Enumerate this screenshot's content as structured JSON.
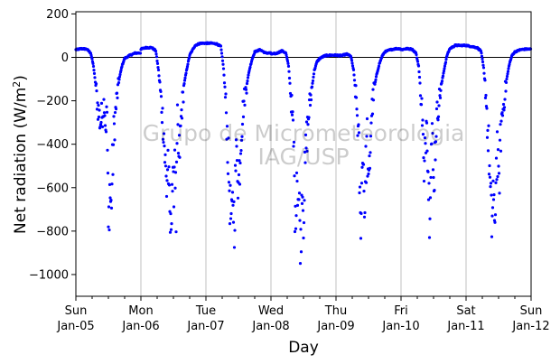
{
  "chart_data": {
    "type": "scatter",
    "xlabel": "Day",
    "ylabel_main": "Net radiation (W/m",
    "ylabel_sup": "2",
    "ylabel_close": ")",
    "watermark": [
      "Grupo de Micrometeorologia",
      "IAG/USP"
    ],
    "xlim": [
      "2020-01-05",
      "2020-01-12"
    ],
    "ylim": [
      -1100,
      210
    ],
    "yticks": [
      200,
      0,
      -200,
      -400,
      -600,
      -800,
      -1000
    ],
    "ytick_labels": [
      "200",
      "0",
      "−200",
      "−400",
      "−600",
      "−800",
      "−1000"
    ],
    "xticks": [
      {
        "date": "2020-01-05",
        "line1": "Sun",
        "line2": "Jan-05"
      },
      {
        "date": "2020-01-06",
        "line1": "Mon",
        "line2": "Jan-06"
      },
      {
        "date": "2020-01-07",
        "line1": "Tue",
        "line2": "Jan-07"
      },
      {
        "date": "2020-01-08",
        "line1": "Wed",
        "line2": "Jan-08"
      },
      {
        "date": "2020-01-09",
        "line1": "Thu",
        "line2": "Jan-09"
      },
      {
        "date": "2020-01-10",
        "line1": "Fri",
        "line2": "Jan-10"
      },
      {
        "date": "2020-01-11",
        "line1": "Sat",
        "line2": "Jan-11"
      },
      {
        "date": "2020-01-12",
        "line1": "Sun",
        "line2": "Jan-12"
      }
    ],
    "grid": "vertical",
    "zero_line": true,
    "marker_color": "#0000ff",
    "series": [
      {
        "values_by_day": [
          [
            [
              "2020-01-05 00:00",
              35
            ],
            [
              "2020-01-05 02:00",
              40
            ],
            [
              "2020-01-05 04:00",
              38
            ],
            [
              "2020-01-05 05:30",
              20
            ],
            [
              "2020-01-05 06:30",
              -40
            ],
            [
              "2020-01-05 07:30",
              -150
            ],
            [
              "2020-01-05 08:00",
              -220
            ],
            [
              "2020-01-05 08:30",
              -260
            ],
            [
              "2020-01-05 09:00",
              -300
            ],
            [
              "2020-01-05 09:30",
              -280
            ],
            [
              "2020-01-05 10:00",
              -240
            ],
            [
              "2020-01-05 10:30",
              -200
            ],
            [
              "2020-01-05 11:00",
              -320
            ],
            [
              "2020-01-05 11:30",
              -250
            ],
            [
              "2020-01-05 12:00",
              -810
            ],
            [
              "2020-01-05 12:30",
              -600
            ],
            [
              "2020-01-05 13:00",
              -700
            ],
            [
              "2020-01-05 13:30",
              -520
            ],
            [
              "2020-01-05 14:00",
              -350
            ],
            [
              "2020-01-05 15:00",
              -200
            ],
            [
              "2020-01-05 16:00",
              -100
            ],
            [
              "2020-01-05 17:00",
              -40
            ],
            [
              "2020-01-05 18:00",
              -5
            ],
            [
              "2020-01-05 20:00",
              10
            ],
            [
              "2020-01-05 22:00",
              20
            ]
          ],
          [
            [
              "2020-01-06 00:00",
              38
            ],
            [
              "2020-01-06 02:00",
              45
            ],
            [
              "2020-01-06 04:00",
              45
            ],
            [
              "2020-01-06 05:30",
              30
            ],
            [
              "2020-01-06 06:30",
              -60
            ],
            [
              "2020-01-06 07:30",
              -200
            ],
            [
              "2020-01-06 08:30",
              -350
            ],
            [
              "2020-01-06 09:00",
              -500
            ],
            [
              "2020-01-06 09:30",
              -600
            ],
            [
              "2020-01-06 10:00",
              -450
            ],
            [
              "2020-01-06 10:30",
              -700
            ],
            [
              "2020-01-06 11:00",
              -820
            ],
            [
              "2020-01-06 11:30",
              -560
            ],
            [
              "2020-01-06 12:00",
              -650
            ],
            [
              "2020-01-06 12:30",
              -400
            ],
            [
              "2020-01-06 13:00",
              -750
            ],
            [
              "2020-01-06 13:30",
              -300
            ],
            [
              "2020-01-06 14:00",
              -500
            ],
            [
              "2020-01-06 15:00",
              -250
            ],
            [
              "2020-01-06 16:00",
              -120
            ],
            [
              "2020-01-06 17:00",
              -50
            ],
            [
              "2020-01-06 18:00",
              10
            ],
            [
              "2020-01-06 20:00",
              55
            ],
            [
              "2020-01-06 22:00",
              65
            ]
          ],
          [
            [
              "2020-01-07 00:00",
              65
            ],
            [
              "2020-01-07 02:00",
              65
            ],
            [
              "2020-01-07 04:00",
              62
            ],
            [
              "2020-01-07 05:30",
              50
            ],
            [
              "2020-01-07 06:30",
              -50
            ],
            [
              "2020-01-07 07:30",
              -250
            ],
            [
              "2020-01-07 08:00",
              -400
            ],
            [
              "2020-01-07 08:30",
              -550
            ],
            [
              "2020-01-07 09:00",
              -700
            ],
            [
              "2020-01-07 09:30",
              -780
            ],
            [
              "2020-01-07 10:00",
              -650
            ],
            [
              "2020-01-07 10:30",
              -760
            ],
            [
              "2020-01-07 11:00",
              -500
            ],
            [
              "2020-01-07 11:30",
              -420
            ],
            [
              "2020-01-07 12:00",
              -600
            ],
            [
              "2020-01-07 13:00",
              -350
            ],
            [
              "2020-01-07 14:00",
              -200
            ],
            [
              "2020-01-07 15:00",
              -130
            ],
            [
              "2020-01-07 16:00",
              -60
            ],
            [
              "2020-01-07 17:00",
              -10
            ],
            [
              "2020-01-07 18:00",
              25
            ],
            [
              "2020-01-07 20:00",
              35
            ],
            [
              "2020-01-07 22:00",
              20
            ]
          ],
          [
            [
              "2020-01-08 00:00",
              15
            ],
            [
              "2020-01-08 02:00",
              18
            ],
            [
              "2020-01-08 04:00",
              30
            ],
            [
              "2020-01-08 05:30",
              20
            ],
            [
              "2020-01-08 06:30",
              -40
            ],
            [
              "2020-01-08 07:30",
              -200
            ],
            [
              "2020-01-08 08:00",
              -300
            ],
            [
              "2020-01-08 08:30",
              -450
            ],
            [
              "2020-01-08 09:00",
              -800
            ],
            [
              "2020-01-08 09:30",
              -500
            ],
            [
              "2020-01-08 10:00",
              -620
            ],
            [
              "2020-01-08 10:30",
              -700
            ],
            [
              "2020-01-08 11:00",
              -880
            ],
            [
              "2020-01-08 11:30",
              -550
            ],
            [
              "2020-01-08 12:00",
              -720
            ],
            [
              "2020-01-08 13:00",
              -400
            ],
            [
              "2020-01-08 14:00",
              -250
            ],
            [
              "2020-01-08 15:00",
              -150
            ],
            [
              "2020-01-08 16:00",
              -60
            ],
            [
              "2020-01-08 17:00",
              -20
            ],
            [
              "2020-01-08 18:00",
              -5
            ],
            [
              "2020-01-08 20:00",
              8
            ],
            [
              "2020-01-08 22:00",
              10
            ]
          ],
          [
            [
              "2020-01-09 00:00",
              10
            ],
            [
              "2020-01-09 02:00",
              8
            ],
            [
              "2020-01-09 04:00",
              15
            ],
            [
              "2020-01-09 05:30",
              5
            ],
            [
              "2020-01-09 06:30",
              -60
            ],
            [
              "2020-01-09 07:30",
              -200
            ],
            [
              "2020-01-09 08:00",
              -300
            ],
            [
              "2020-01-09 08:30",
              -450
            ],
            [
              "2020-01-09 09:00",
              -780
            ],
            [
              "2020-01-09 09:30",
              -600
            ],
            [
              "2020-01-09 10:00",
              -400
            ],
            [
              "2020-01-09 10:30",
              -700
            ],
            [
              "2020-01-09 11:00",
              -520
            ],
            [
              "2020-01-09 11:30",
              -350
            ],
            [
              "2020-01-09 12:00",
              -650
            ],
            [
              "2020-01-09 13:00",
              -280
            ],
            [
              "2020-01-09 14:00",
              -150
            ],
            [
              "2020-01-09 15:00",
              -80
            ],
            [
              "2020-01-09 16:00",
              -30
            ],
            [
              "2020-01-09 17:00",
              5
            ],
            [
              "2020-01-09 18:00",
              25
            ],
            [
              "2020-01-09 20:00",
              35
            ],
            [
              "2020-01-09 22:00",
              40
            ]
          ],
          [
            [
              "2020-01-10 00:00",
              35
            ],
            [
              "2020-01-10 02:00",
              40
            ],
            [
              "2020-01-10 04:00",
              38
            ],
            [
              "2020-01-10 05:30",
              20
            ],
            [
              "2020-01-10 06:30",
              -40
            ],
            [
              "2020-01-10 07:30",
              -200
            ],
            [
              "2020-01-10 08:00",
              -300
            ],
            [
              "2020-01-10 08:30",
              -610
            ],
            [
              "2020-01-10 09:00",
              -400
            ],
            [
              "2020-01-10 09:30",
              -250
            ],
            [
              "2020-01-10 10:00",
              -520
            ],
            [
              "2020-01-10 10:30",
              -700
            ],
            [
              "2020-01-10 11:00",
              -450
            ],
            [
              "2020-01-10 11:30",
              -350
            ],
            [
              "2020-01-10 12:00",
              -600
            ],
            [
              "2020-01-10 13:00",
              -300
            ],
            [
              "2020-01-10 14:00",
              -200
            ],
            [
              "2020-01-10 15:00",
              -120
            ],
            [
              "2020-01-10 16:00",
              -50
            ],
            [
              "2020-01-10 17:00",
              10
            ],
            [
              "2020-01-10 18:00",
              40
            ],
            [
              "2020-01-10 20:00",
              55
            ],
            [
              "2020-01-10 22:00",
              55
            ]
          ],
          [
            [
              "2020-01-11 00:00",
              55
            ],
            [
              "2020-01-11 02:00",
              50
            ],
            [
              "2020-01-11 04:00",
              45
            ],
            [
              "2020-01-11 05:30",
              30
            ],
            [
              "2020-01-11 06:30",
              -50
            ],
            [
              "2020-01-11 07:30",
              -200
            ],
            [
              "2020-01-11 08:00",
              -350
            ],
            [
              "2020-01-11 08:30",
              -450
            ],
            [
              "2020-01-11 09:00",
              -650
            ],
            [
              "2020-01-11 09:30",
              -780
            ],
            [
              "2020-01-11 10:00",
              -600
            ],
            [
              "2020-01-11 10:30",
              -830
            ],
            [
              "2020-01-11 11:00",
              -550
            ],
            [
              "2020-01-11 11:30",
              -400
            ],
            [
              "2020-01-11 12:00",
              -620
            ],
            [
              "2020-01-11 13:00",
              -300
            ],
            [
              "2020-01-11 14:00",
              -200
            ],
            [
              "2020-01-11 15:00",
              -100
            ],
            [
              "2020-01-11 16:00",
              -30
            ],
            [
              "2020-01-11 17:00",
              10
            ],
            [
              "2020-01-11 18:00",
              25
            ],
            [
              "2020-01-11 20:00",
              35
            ],
            [
              "2020-01-11 22:00",
              38
            ]
          ]
        ]
      }
    ]
  }
}
